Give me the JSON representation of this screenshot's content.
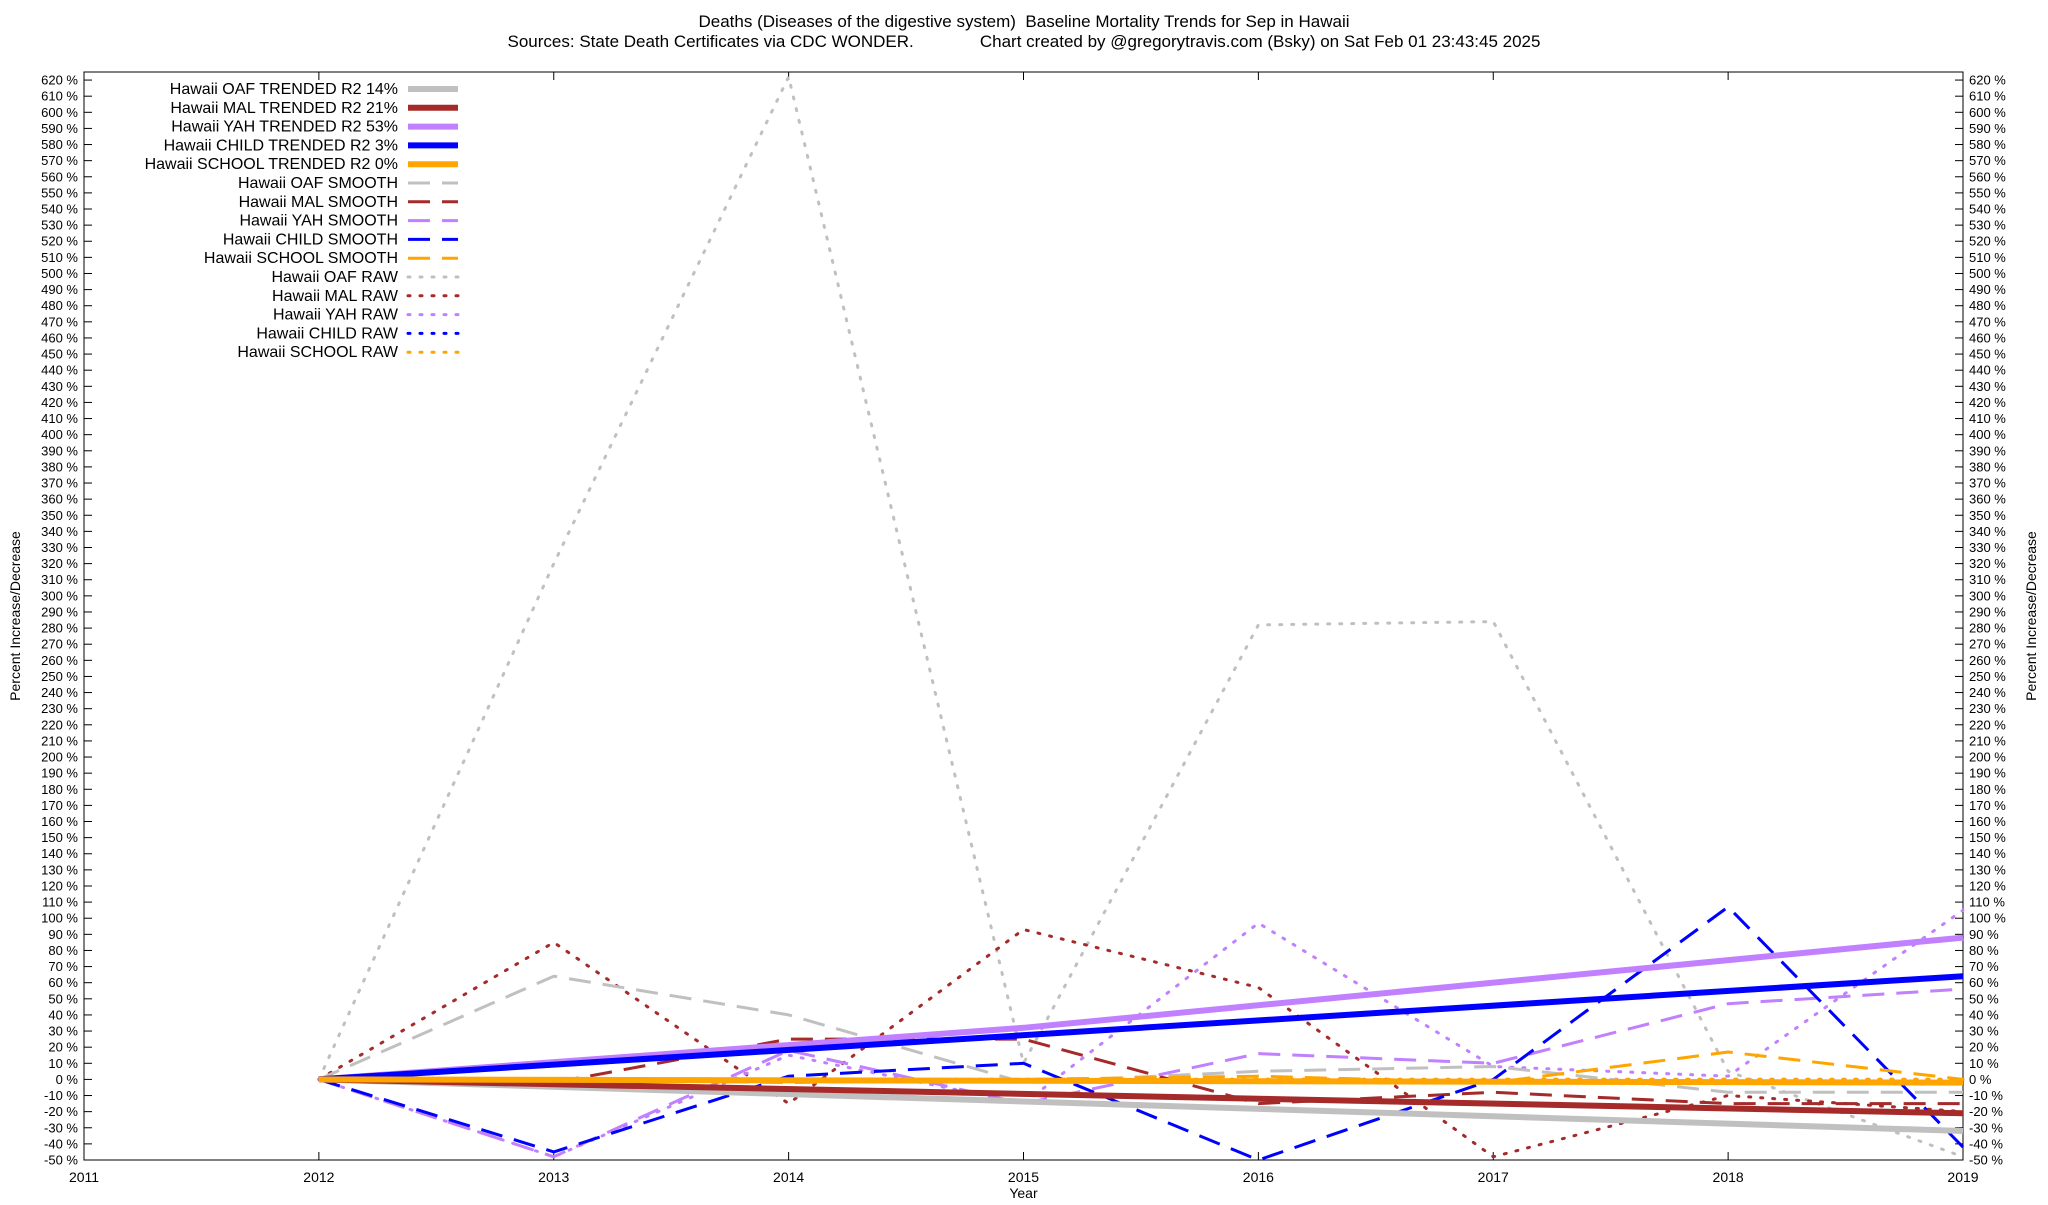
{
  "header": {
    "title": "Deaths (Diseases of the digestive system)  Baseline Mortality Trends for Sep in Hawaii",
    "subtitle": "Sources: State Death Certificates via CDC WONDER.              Chart created by @gregorytravis.com (Bsky) on Sat Feb 01 23:43:45 2025"
  },
  "chart_data": {
    "type": "line",
    "title": "Deaths (Diseases of the digestive system)  Baseline Mortality Trends for Sep in Hawaii",
    "xlabel": "Year",
    "ylabel": "Percent Increase/Decrease",
    "y2label": "Percent Increase/Decrease",
    "xlim": [
      2011,
      2019
    ],
    "ylim": [
      -50,
      625
    ],
    "x_ticks": [
      2011,
      2012,
      2013,
      2014,
      2015,
      2016,
      2017,
      2018,
      2019
    ],
    "y_ticks": {
      "start": -50,
      "end": 620,
      "step": 10,
      "suffix": " %"
    },
    "grid": false,
    "legend_position": "top-left",
    "series": [
      {
        "name": "Hawaii OAF TRENDED R2  14%",
        "style": "trend",
        "color": "#c0c0c0",
        "x": [
          2012,
          2019
        ],
        "y": [
          0,
          -32
        ]
      },
      {
        "name": "Hawaii MAL TRENDED R2  21%",
        "style": "trend",
        "color": "#a52a2a",
        "x": [
          2012,
          2019
        ],
        "y": [
          0,
          -21
        ]
      },
      {
        "name": "Hawaii YAH TRENDED R2  53%",
        "style": "trend",
        "color": "#c080ff",
        "x": [
          2012,
          2015,
          2019
        ],
        "y": [
          0,
          32,
          88
        ]
      },
      {
        "name": "Hawaii CHILD TRENDED R2   3%",
        "style": "trend",
        "color": "#0000ff",
        "x": [
          2012,
          2019
        ],
        "y": [
          0,
          64
        ]
      },
      {
        "name": "Hawaii SCHOOL TRENDED R2   0%",
        "style": "trend",
        "color": "#ffa500",
        "x": [
          2012,
          2019
        ],
        "y": [
          0,
          -2
        ]
      },
      {
        "name": "Hawaii OAF SMOOTH",
        "style": "smooth",
        "color": "#c0c0c0",
        "x": [
          2012,
          2013,
          2014,
          2015,
          2016,
          2017,
          2018,
          2019
        ],
        "y": [
          0,
          64,
          40,
          -2,
          5,
          8,
          -8,
          -8
        ]
      },
      {
        "name": "Hawaii MAL SMOOTH",
        "style": "smooth",
        "color": "#a52a2a",
        "x": [
          2012,
          2013,
          2014,
          2015,
          2016,
          2017,
          2018,
          2019
        ],
        "y": [
          0,
          -2,
          25,
          25,
          -15,
          -8,
          -15,
          -15
        ]
      },
      {
        "name": "Hawaii YAH SMOOTH",
        "style": "smooth",
        "color": "#c080ff",
        "x": [
          2012,
          2013,
          2014,
          2015,
          2016,
          2017,
          2018,
          2019
        ],
        "y": [
          0,
          -48,
          18,
          -15,
          16,
          10,
          47,
          56
        ]
      },
      {
        "name": "Hawaii CHILD SMOOTH",
        "style": "smooth",
        "color": "#0000ff",
        "x": [
          2012,
          2013,
          2014,
          2015,
          2016,
          2017,
          2018,
          2019
        ],
        "y": [
          0,
          -45,
          2,
          10,
          -50,
          0,
          107,
          -42
        ]
      },
      {
        "name": "Hawaii SCHOOL SMOOTH",
        "style": "smooth",
        "color": "#ffa500",
        "x": [
          2012,
          2013,
          2014,
          2015,
          2016,
          2017,
          2018,
          2019
        ],
        "y": [
          0,
          0,
          -2,
          0,
          2,
          -2,
          17,
          0
        ]
      },
      {
        "name": "Hawaii OAF RAW",
        "style": "raw",
        "color": "#c0c0c0",
        "x": [
          2012,
          2013,
          2014,
          2015,
          2016,
          2017,
          2018,
          2019
        ],
        "y": [
          0,
          320,
          622,
          10,
          282,
          284,
          5,
          -48
        ]
      },
      {
        "name": "Hawaii MAL RAW",
        "style": "raw",
        "color": "#a52a2a",
        "x": [
          2012,
          2013,
          2014,
          2015,
          2016,
          2017,
          2018,
          2019
        ],
        "y": [
          0,
          85,
          -15,
          93,
          57,
          -48,
          -10,
          -20
        ]
      },
      {
        "name": "Hawaii YAH RAW",
        "style": "raw",
        "color": "#c080ff",
        "x": [
          2012,
          2013,
          2014,
          2015,
          2016,
          2017,
          2018,
          2019
        ],
        "y": [
          0,
          -48,
          15,
          -15,
          97,
          8,
          2,
          105
        ]
      },
      {
        "name": "Hawaii CHILD RAW",
        "style": "raw",
        "color": "#0000ff",
        "x": [
          2012,
          2019
        ],
        "y": [
          0,
          0
        ]
      },
      {
        "name": "Hawaii SCHOOL RAW",
        "style": "raw",
        "color": "#ffa500",
        "x": [
          2012,
          2019
        ],
        "y": [
          0,
          0
        ]
      }
    ]
  }
}
